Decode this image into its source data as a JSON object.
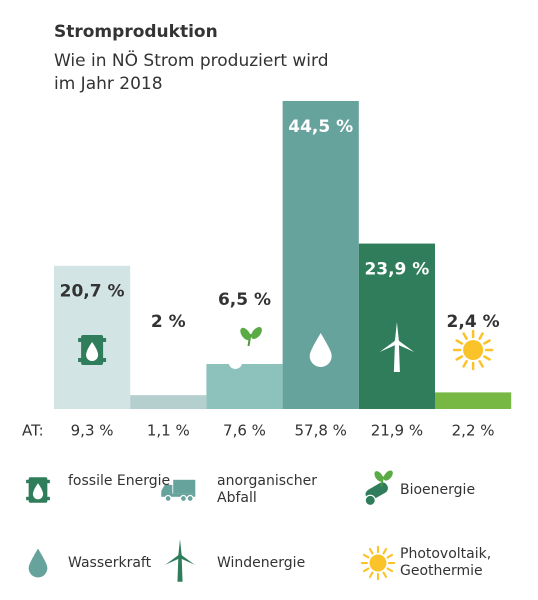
{
  "chart_data": {
    "type": "bar",
    "title": "Stromproduktion",
    "subtitle": "Wie in NÖ Strom produziert wird im Jahr 2018",
    "categories": [
      "fossile Energie",
      "anorganischer Abfall",
      "Bioenergie",
      "Wasserkraft",
      "Windenergie",
      "Photovoltaik, Geothermie"
    ],
    "values": [
      20.7,
      2,
      6.5,
      44.5,
      23.9,
      2.4
    ],
    "value_labels": [
      "20,7 %",
      "2 %",
      "6,5 %",
      "44,5 %",
      "23,9 %",
      "2,4 %"
    ],
    "colors": [
      "#d3e4e4",
      "#b5cfcf",
      "#8dc1bc",
      "#67a39d",
      "#2f7d5a",
      "#76b843"
    ],
    "comparison_label": "AT:",
    "comparison_values": [
      9.3,
      1.1,
      7.6,
      57.8,
      21.9,
      2.2
    ],
    "comparison_value_labels": [
      "9,3 %",
      "1,1 %",
      "7,6 %",
      "57,8 %",
      "21,9 %",
      "2,2 %"
    ]
  }
}
